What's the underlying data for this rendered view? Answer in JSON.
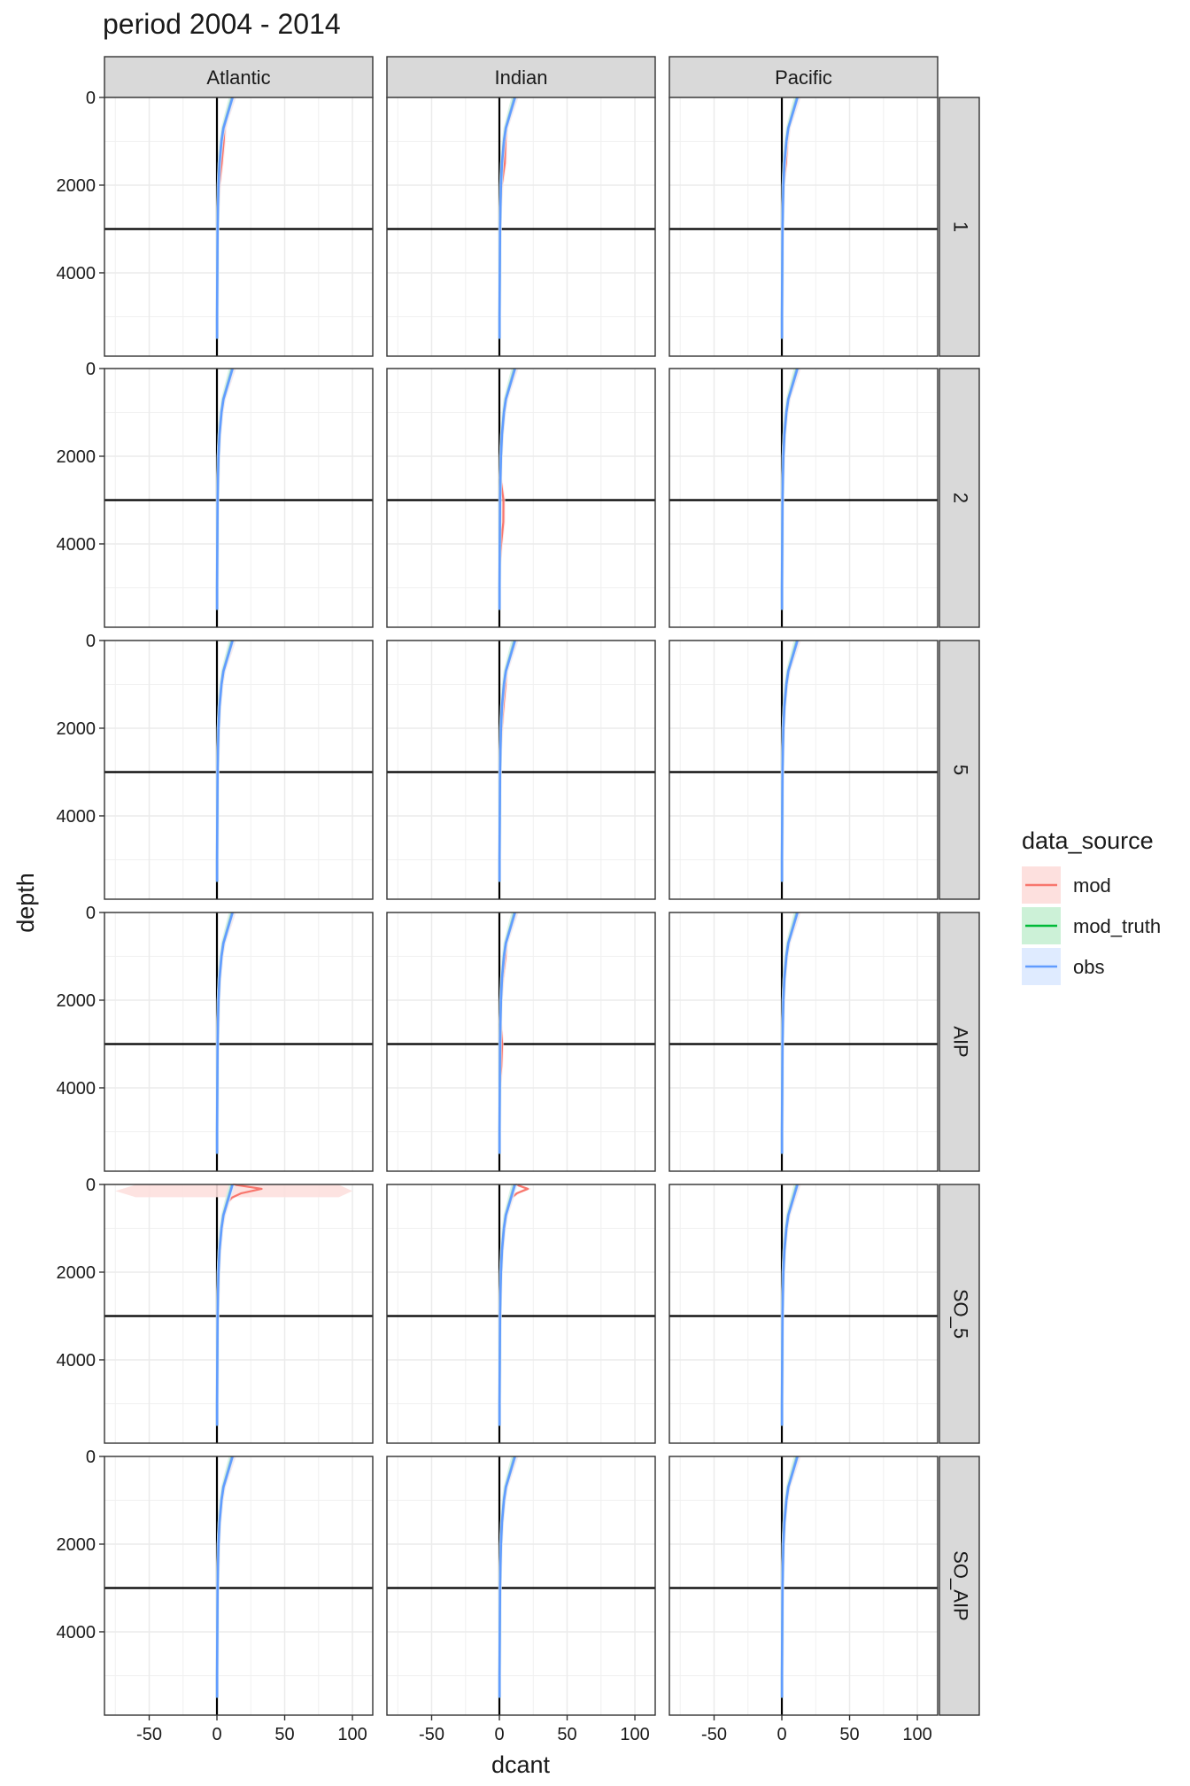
{
  "chart_data": {
    "type": "line",
    "title": "period 2004 - 2014",
    "xlabel": "dcant",
    "ylabel": "depth",
    "x_ticks": [
      -50,
      0,
      50,
      100
    ],
    "y_ticks": [
      0,
      2000,
      4000
    ],
    "xlim": [
      -83,
      115
    ],
    "ylim": [
      0,
      5900
    ],
    "y_reversed": true,
    "grid": true,
    "reference_lines": {
      "vertical_x": 0,
      "horizontal_y": 3000
    },
    "facet_columns": [
      "Atlantic",
      "Indian",
      "Pacific"
    ],
    "facet_rows": [
      "1",
      "2",
      "5",
      "AIP",
      "SO_5",
      "SO_AIP"
    ],
    "legend": {
      "title": "data_source",
      "position": "right",
      "entries": [
        {
          "name": "mod",
          "line_color": "#F8766D",
          "fill_color": "#FDE0DE"
        },
        {
          "name": "mod_truth",
          "line_color": "#00BA38",
          "fill_color": "#CCF1D7"
        },
        {
          "name": "obs",
          "line_color": "#619CFF",
          "fill_color": "#DFEBFF"
        }
      ]
    },
    "depth_levels": [
      0,
      100,
      200,
      300,
      400,
      500,
      700,
      1000,
      1500,
      2000,
      2500,
      3000,
      3500,
      4000,
      4500,
      5000,
      5500
    ],
    "base_profile": [
      12,
      11,
      10,
      9,
      8,
      7,
      5,
      3.5,
      2,
      1.2,
      0.8,
      0.5,
      0.4,
      0.3,
      0.2,
      0.1,
      0.1
    ],
    "panels": [
      {
        "row": "1",
        "col": "Atlantic",
        "mod_extra": [
          0,
          0,
          0,
          0,
          0,
          0,
          0.5,
          1.5,
          1.5,
          0.5,
          0,
          0,
          0,
          0,
          0,
          0,
          0
        ]
      },
      {
        "row": "1",
        "col": "Indian",
        "mod_extra": [
          0,
          0,
          0,
          0,
          0,
          0,
          0,
          1,
          2,
          0.5,
          0,
          0,
          0,
          0,
          0,
          0,
          0
        ]
      },
      {
        "row": "1",
        "col": "Pacific",
        "mod_extra": [
          0,
          0,
          0,
          0,
          0,
          0,
          0,
          0.5,
          1,
          0,
          0,
          0,
          0,
          0,
          0,
          0,
          0
        ]
      },
      {
        "row": "2",
        "col": "Atlantic",
        "mod_extra": [
          0,
          0,
          0,
          0,
          0,
          0,
          0,
          0,
          0,
          0,
          0,
          0,
          0,
          0,
          0,
          0,
          0
        ]
      },
      {
        "row": "2",
        "col": "Indian",
        "mod_extra": [
          0,
          0,
          0,
          0,
          0,
          0,
          0,
          0,
          0,
          0,
          0,
          2.5,
          2.5,
          1,
          0,
          0,
          0
        ]
      },
      {
        "row": "2",
        "col": "Pacific",
        "mod_extra": [
          0,
          0,
          0,
          0,
          0,
          0,
          0,
          0,
          0,
          0,
          0,
          0,
          0,
          0,
          0,
          0,
          0
        ]
      },
      {
        "row": "5",
        "col": "Atlantic",
        "mod_extra": [
          0,
          0,
          0,
          0,
          0,
          0,
          0,
          0,
          0,
          0,
          0,
          0,
          0,
          0,
          0,
          0,
          0
        ]
      },
      {
        "row": "5",
        "col": "Indian",
        "mod_extra": [
          0,
          0,
          0,
          0,
          0,
          0,
          0,
          1,
          1,
          0.5,
          0,
          0,
          0,
          0,
          0,
          0,
          0
        ]
      },
      {
        "row": "5",
        "col": "Pacific",
        "mod_extra": [
          0,
          0,
          0,
          0,
          0,
          0,
          0,
          0,
          0,
          0,
          0,
          0,
          0,
          0,
          0,
          0,
          0
        ]
      },
      {
        "row": "AIP",
        "col": "Atlantic",
        "mod_extra": [
          0,
          0,
          0,
          0,
          0,
          0,
          0,
          0,
          0,
          0,
          0,
          0,
          0,
          0,
          0,
          0,
          0
        ]
      },
      {
        "row": "AIP",
        "col": "Indian",
        "mod_extra": [
          0,
          0,
          0,
          0,
          0,
          0,
          0,
          1,
          0.5,
          0,
          0,
          1.5,
          1,
          0,
          0,
          0,
          0
        ]
      },
      {
        "row": "AIP",
        "col": "Pacific",
        "mod_extra": [
          0,
          0,
          0,
          0,
          0,
          0,
          0,
          0,
          0,
          0,
          0,
          0,
          0,
          0,
          0,
          0,
          0
        ]
      },
      {
        "row": "SO_5",
        "col": "Atlantic",
        "mod_extra": [
          0,
          22,
          8,
          2,
          0,
          0,
          0,
          0,
          0,
          0,
          0,
          0,
          0,
          0,
          0,
          0,
          0
        ],
        "mod_band": {
          "depth": 150,
          "xmin": -75,
          "xmax": 100
        }
      },
      {
        "row": "SO_5",
        "col": "Indian",
        "mod_extra": [
          0,
          10,
          3,
          0,
          0,
          0,
          0,
          0,
          0,
          0,
          0,
          0,
          0,
          0,
          0,
          0,
          0
        ]
      },
      {
        "row": "SO_5",
        "col": "Pacific",
        "mod_extra": [
          0,
          0,
          0,
          0,
          0,
          0,
          0,
          0,
          0,
          0,
          0,
          0,
          0,
          0,
          0,
          0,
          0
        ]
      },
      {
        "row": "SO_AIP",
        "col": "Atlantic",
        "mod_extra": [
          0,
          0,
          0,
          0,
          0,
          0,
          0,
          0,
          0,
          0,
          0,
          0,
          0,
          0,
          0,
          0,
          0
        ]
      },
      {
        "row": "SO_AIP",
        "col": "Indian",
        "mod_extra": [
          0,
          0,
          0,
          0,
          0,
          0,
          0,
          0,
          0,
          0,
          0,
          0,
          0,
          0,
          0,
          0,
          0
        ]
      },
      {
        "row": "SO_AIP",
        "col": "Pacific",
        "mod_extra": [
          0,
          0,
          0,
          0,
          0,
          0,
          0,
          0,
          0,
          0,
          0,
          0,
          0,
          0,
          0,
          0,
          0
        ]
      }
    ]
  }
}
